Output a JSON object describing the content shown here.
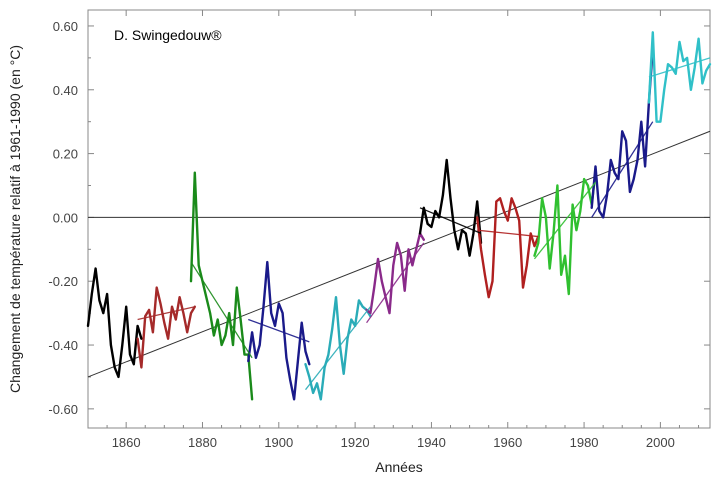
{
  "chart_data": {
    "type": "line",
    "credit": "D. Swingedouw®",
    "xlabel": "Années",
    "ylabel": "Changement de température relatif à 1961-1990 (en °C)",
    "xlim": [
      1850,
      2013
    ],
    "ylim": [
      -0.66,
      0.65
    ],
    "x_ticks": [
      1860,
      1880,
      1900,
      1920,
      1940,
      1960,
      1980,
      2000
    ],
    "y_ticks": [
      0.6,
      0.4,
      0.2,
      0.0,
      -0.2,
      -0.4,
      -0.6
    ],
    "y_tick_labels": [
      "0.60",
      "0.40",
      "0.20",
      "0.00",
      "-0.20",
      "-0.40",
      "-0.60"
    ],
    "zero_line": 0.0,
    "overall_trend": {
      "color": "#333333",
      "x": [
        1850,
        2013
      ],
      "y": [
        -0.5,
        0.27
      ]
    },
    "segments": [
      {
        "color": "#000000",
        "x": [
          1850,
          1851,
          1852,
          1853,
          1854,
          1855,
          1856,
          1857,
          1858,
          1859,
          1860,
          1861,
          1862,
          1863,
          1864
        ],
        "y": [
          -0.34,
          -0.24,
          -0.16,
          -0.26,
          -0.3,
          -0.24,
          -0.4,
          -0.47,
          -0.5,
          -0.4,
          -0.28,
          -0.43,
          -0.46,
          -0.34,
          -0.38
        ],
        "trend": null
      },
      {
        "color": "#a52a2a",
        "x": [
          1863,
          1864,
          1865,
          1866,
          1867,
          1868,
          1869,
          1870,
          1871,
          1872,
          1873,
          1874,
          1875,
          1876,
          1877,
          1878
        ],
        "y": [
          -0.38,
          -0.47,
          -0.31,
          -0.29,
          -0.36,
          -0.22,
          -0.27,
          -0.33,
          -0.38,
          -0.28,
          -0.32,
          -0.25,
          -0.3,
          -0.36,
          -0.3,
          -0.28
        ],
        "trend": [
          -0.32,
          -0.28
        ]
      },
      {
        "color": "#1a8a1a",
        "x": [
          1877,
          1878,
          1879,
          1880,
          1881,
          1882,
          1883,
          1884,
          1885,
          1886,
          1887,
          1888,
          1889,
          1890,
          1891,
          1892,
          1893
        ],
        "y": [
          -0.2,
          0.14,
          -0.15,
          -0.2,
          -0.25,
          -0.3,
          -0.37,
          -0.32,
          -0.4,
          -0.37,
          -0.3,
          -0.4,
          -0.22,
          -0.32,
          -0.43,
          -0.43,
          -0.57
        ],
        "trend": [
          -0.14,
          -0.44
        ]
      },
      {
        "color": "#1a1a8a",
        "x": [
          1892,
          1893,
          1894,
          1895,
          1896,
          1897,
          1898,
          1899,
          1900,
          1901,
          1902,
          1903,
          1904,
          1905,
          1906,
          1907,
          1908
        ],
        "y": [
          -0.45,
          -0.36,
          -0.44,
          -0.4,
          -0.28,
          -0.14,
          -0.3,
          -0.34,
          -0.27,
          -0.3,
          -0.44,
          -0.51,
          -0.57,
          -0.45,
          -0.33,
          -0.42,
          -0.46
        ],
        "trend": [
          -0.32,
          -0.39
        ]
      },
      {
        "color": "#2aacb8",
        "x": [
          1907,
          1908,
          1909,
          1910,
          1911,
          1912,
          1913,
          1914,
          1915,
          1916,
          1917,
          1918,
          1919,
          1920,
          1921,
          1922,
          1923,
          1924
        ],
        "y": [
          -0.46,
          -0.5,
          -0.55,
          -0.52,
          -0.57,
          -0.47,
          -0.43,
          -0.35,
          -0.25,
          -0.4,
          -0.49,
          -0.38,
          -0.32,
          -0.34,
          -0.26,
          -0.28,
          -0.29,
          -0.31
        ],
        "trend": [
          -0.54,
          -0.28
        ]
      },
      {
        "color": "#8a2a8a",
        "x": [
          1923,
          1924,
          1925,
          1926,
          1927,
          1928,
          1929,
          1930,
          1931,
          1932,
          1933,
          1934,
          1935,
          1936,
          1937,
          1938
        ],
        "y": [
          -0.29,
          -0.3,
          -0.22,
          -0.13,
          -0.2,
          -0.25,
          -0.3,
          -0.15,
          -0.08,
          -0.12,
          -0.23,
          -0.1,
          -0.15,
          -0.1,
          -0.05,
          -0.07
        ],
        "trend": [
          -0.33,
          -0.08
        ]
      },
      {
        "color": "#000000",
        "x": [
          1937,
          1938,
          1939,
          1940,
          1941,
          1942,
          1943,
          1944,
          1945,
          1946,
          1947,
          1948,
          1949,
          1950,
          1951,
          1952,
          1953
        ],
        "y": [
          -0.05,
          0.03,
          -0.02,
          -0.03,
          0.02,
          0.0,
          0.07,
          0.18,
          0.06,
          -0.04,
          -0.1,
          -0.04,
          -0.05,
          -0.12,
          -0.05,
          0.05,
          -0.08
        ],
        "trend": [
          0.03,
          -0.05
        ]
      },
      {
        "color": "#b02020",
        "x": [
          1952,
          1953,
          1954,
          1955,
          1956,
          1957,
          1958,
          1959,
          1960,
          1961,
          1962,
          1963,
          1964,
          1965,
          1966,
          1967,
          1968
        ],
        "y": [
          0.0,
          -0.1,
          -0.18,
          -0.25,
          -0.2,
          0.05,
          0.06,
          0.02,
          -0.01,
          0.06,
          0.03,
          -0.01,
          -0.22,
          -0.15,
          -0.05,
          -0.09,
          -0.06
        ],
        "trend": [
          -0.04,
          -0.06
        ]
      },
      {
        "color": "#30c030",
        "x": [
          1967,
          1968,
          1969,
          1970,
          1971,
          1972,
          1973,
          1974,
          1975,
          1976,
          1977,
          1978,
          1979,
          1980,
          1981,
          1982,
          1983
        ],
        "y": [
          -0.12,
          -0.08,
          0.06,
          0.0,
          -0.16,
          -0.05,
          0.1,
          -0.18,
          -0.12,
          -0.24,
          0.04,
          -0.04,
          0.02,
          0.12,
          0.1,
          0.04,
          0.14
        ],
        "trend": [
          -0.13,
          0.11
        ]
      },
      {
        "color": "#1a1a8a",
        "x": [
          1982,
          1983,
          1984,
          1985,
          1986,
          1987,
          1988,
          1989,
          1990,
          1991,
          1992,
          1993,
          1994,
          1995,
          1996,
          1997,
          1998
        ],
        "y": [
          0.03,
          0.16,
          0.02,
          0.0,
          0.07,
          0.18,
          0.14,
          0.12,
          0.27,
          0.24,
          0.08,
          0.12,
          0.18,
          0.3,
          0.16,
          0.36,
          0.53
        ],
        "trend": [
          0.0,
          0.3
        ]
      },
      {
        "color": "#30c0c8",
        "x": [
          1997,
          1998,
          1999,
          2000,
          2001,
          2002,
          2003,
          2004,
          2005,
          2006,
          2007,
          2008,
          2009,
          2010,
          2011,
          2012,
          2013
        ],
        "y": [
          0.36,
          0.58,
          0.3,
          0.3,
          0.4,
          0.48,
          0.47,
          0.45,
          0.55,
          0.49,
          0.5,
          0.4,
          0.47,
          0.56,
          0.42,
          0.46,
          0.48
        ],
        "trend": [
          0.44,
          0.5
        ]
      }
    ]
  }
}
